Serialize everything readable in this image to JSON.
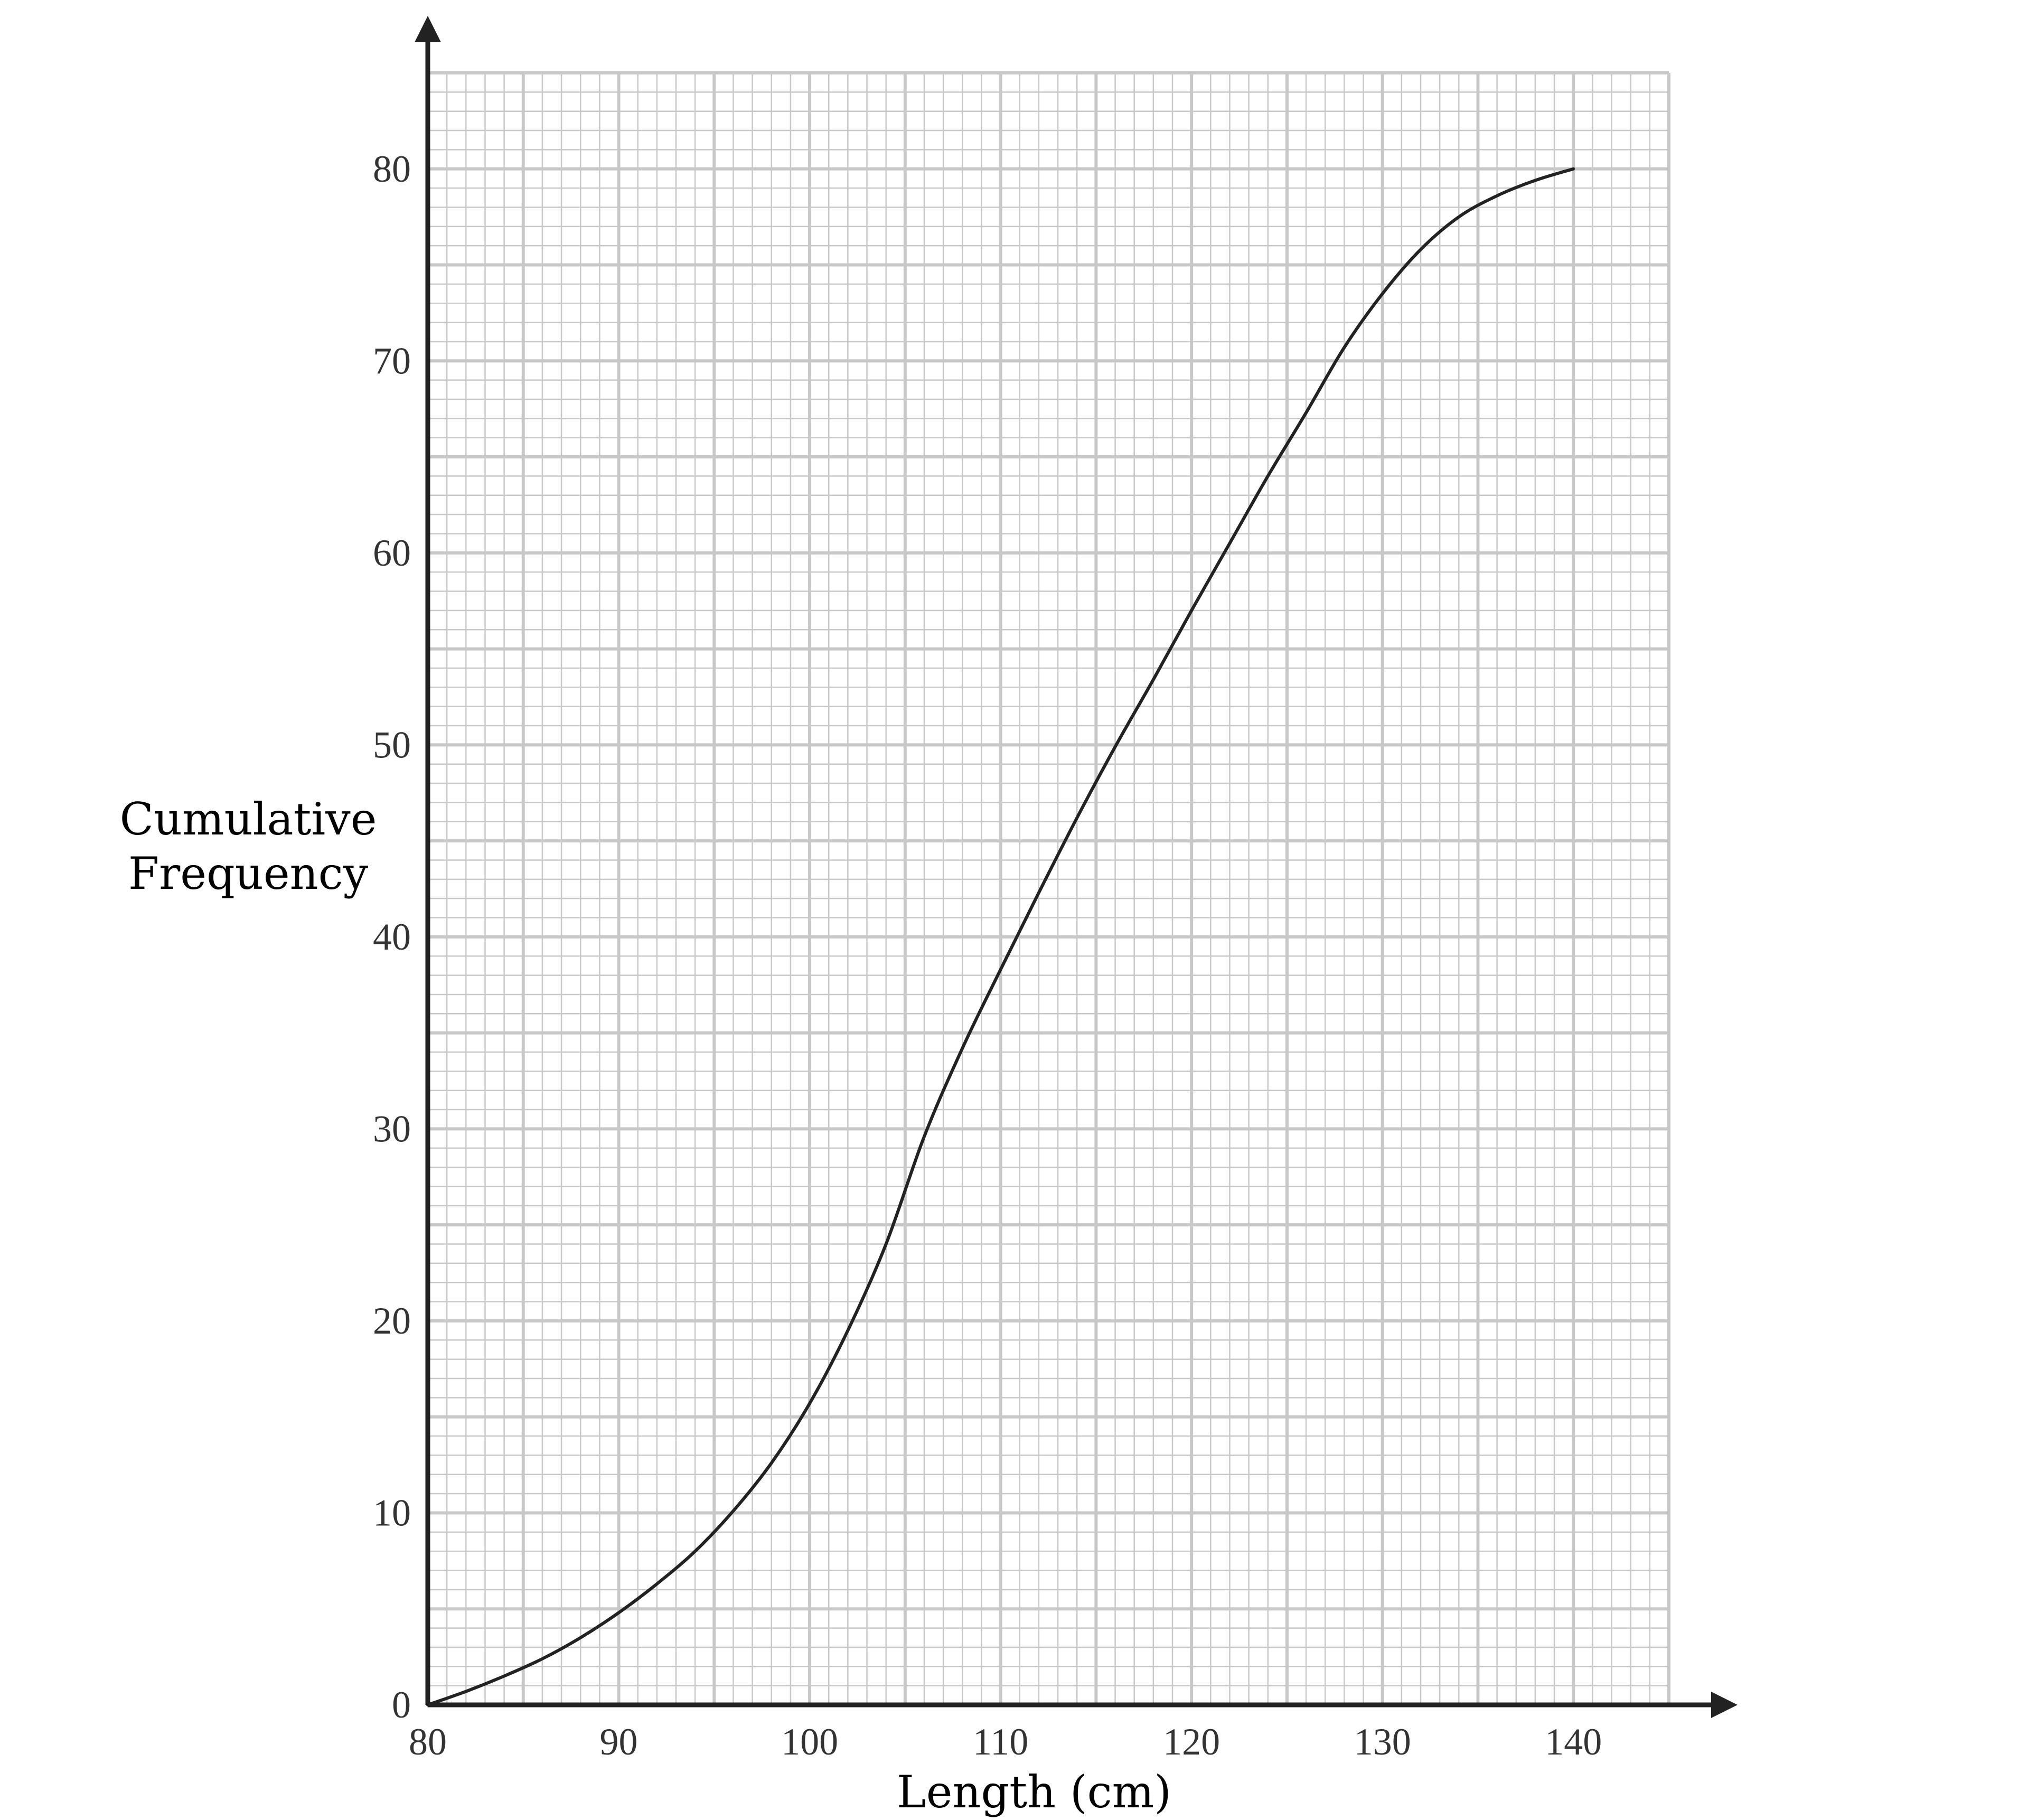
{
  "chart_data": {
    "type": "line",
    "title": "",
    "xlabel": "Length (cm)",
    "ylabel_lines": [
      "Cumulative",
      "Frequency"
    ],
    "xlim": [
      80,
      145
    ],
    "ylim": [
      0,
      85
    ],
    "x_ticks": [
      80,
      90,
      100,
      110,
      120,
      130,
      140
    ],
    "y_ticks": [
      0,
      10,
      20,
      30,
      40,
      50,
      60,
      70,
      80
    ],
    "grid": {
      "major": 5,
      "minor": 1
    },
    "series": [
      {
        "x": [
          80,
          82,
          84,
          86,
          88,
          90,
          92,
          94,
          96,
          98,
          100,
          102,
          104,
          106,
          108,
          110,
          112,
          114,
          116,
          118,
          120,
          122,
          124,
          126,
          128,
          130,
          132,
          134,
          136,
          138,
          140
        ],
        "y": [
          0,
          0.7,
          1.5,
          2.4,
          3.5,
          4.8,
          6.3,
          8.0,
          10.1,
          12.6,
          15.7,
          19.5,
          24.0,
          29.6,
          34.2,
          38.3,
          42.3,
          46.2,
          49.9,
          53.4,
          57.0,
          60.5,
          64.0,
          67.3,
          70.7,
          73.5,
          75.8,
          77.5,
          78.6,
          79.4,
          80
        ]
      }
    ],
    "colors": {
      "grid": "#c8c8c8",
      "axis": "#222222",
      "curve": "#222222",
      "tick_text": "#333333"
    }
  }
}
